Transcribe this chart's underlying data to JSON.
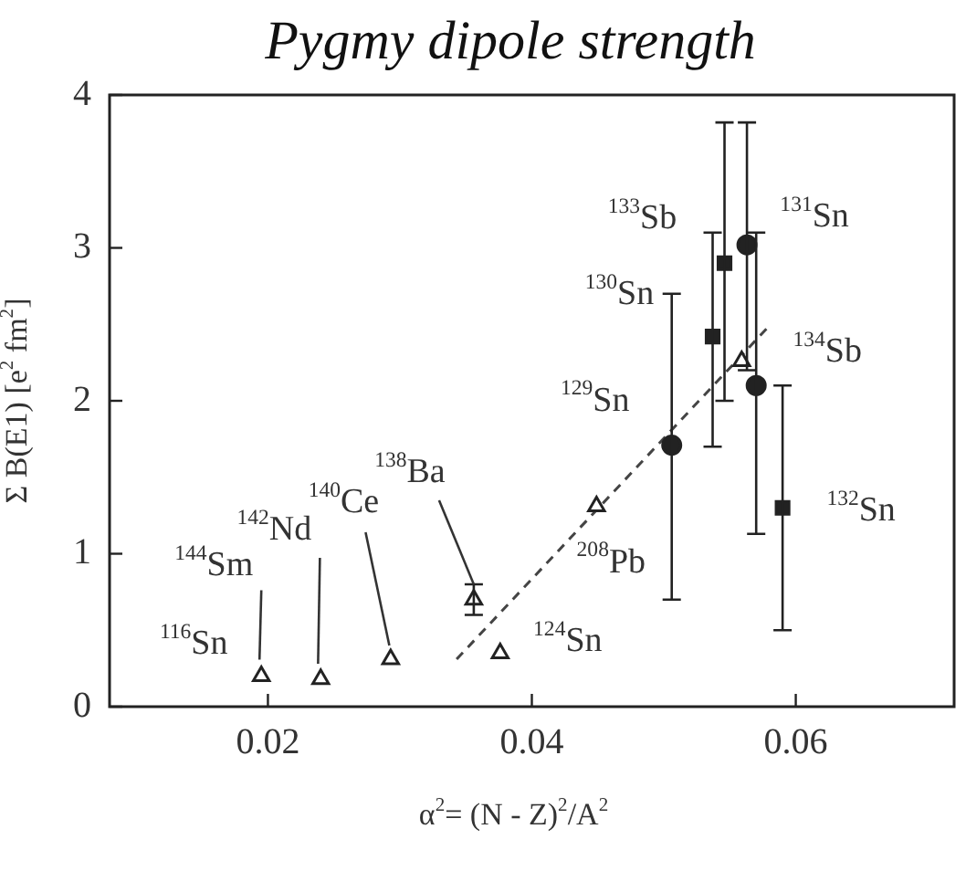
{
  "chart_data": {
    "type": "scatter",
    "title": "Pygmy dipole strength",
    "xlabel": "α$^{2}$= (N - Z)$^{2}$/A$^{2}$",
    "ylabel": "Σ B(E1) [e$^{2}$ fm$^{2}$]",
    "xlim": [
      0.008,
      0.072
    ],
    "ylim": [
      0,
      4
    ],
    "xticks": [
      0.02,
      0.04,
      0.06
    ],
    "yticks": [
      0,
      1,
      2,
      3,
      4
    ],
    "grid": false,
    "legend": false,
    "series": [
      {
        "type": "scatter",
        "marker": "triangle",
        "color": "#222222",
        "x": [
          0.0195,
          0.024,
          0.0293,
          0.0356,
          0.0376,
          0.0449,
          0.0559
        ],
        "values": [
          0.2,
          0.18,
          0.31,
          0.7,
          0.35,
          1.31,
          2.26
        ],
        "errors": [
          null,
          null,
          null,
          [
            0.6,
            0.8
          ],
          null,
          null,
          null
        ]
      },
      {
        "type": "scatter",
        "marker": "circle",
        "color": "#222222",
        "x": [
          0.0506,
          0.0563,
          0.057
        ],
        "values": [
          1.71,
          3.02,
          2.1
        ],
        "errors": [
          [
            0.7,
            2.7
          ],
          [
            2.2,
            3.82
          ],
          [
            1.13,
            3.1
          ]
        ]
      },
      {
        "type": "scatter",
        "marker": "square",
        "color": "#222222",
        "x": [
          0.0537,
          0.0546,
          0.059
        ],
        "values": [
          2.42,
          2.9,
          1.3
        ],
        "errors": [
          [
            1.7,
            3.1
          ],
          [
            2.0,
            3.82
          ],
          [
            0.5,
            2.1
          ]
        ]
      },
      {
        "type": "line",
        "marker": "none",
        "line_style": "dashed",
        "color": "#444444",
        "x": [
          0.0343,
          0.0581
        ],
        "values": [
          0.31,
          2.5
        ]
      }
    ],
    "annotations": [
      {
        "text": "$^{116}$Sn",
        "x": 0.0195,
        "y": 0.2
      },
      {
        "text": "$^{144}$Sm",
        "x": 0.0195,
        "y": 0.2
      },
      {
        "text": "$^{142}$Nd",
        "x": 0.0238,
        "y": 0.28
      },
      {
        "text": "$^{140}$Ce",
        "x": 0.0292,
        "y": 0.4
      },
      {
        "text": "$^{138}$Ba",
        "x": 0.0356,
        "y": 0.8
      },
      {
        "text": "$^{124}$Sn",
        "x": 0.0376,
        "y": 0.35
      },
      {
        "text": "$^{208}$Pb",
        "x": 0.0449,
        "y": 1.31
      },
      {
        "text": "$^{129}$Sn",
        "x": 0.0506,
        "y": 1.71
      },
      {
        "text": "$^{130}$Sn",
        "x": 0.0537,
        "y": 2.42
      },
      {
        "text": "$^{133}$Sb",
        "x": 0.0546,
        "y": 2.9
      },
      {
        "text": "$^{131}$Sn",
        "x": 0.0563,
        "y": 3.02
      },
      {
        "text": "$^{134}$Sb",
        "x": 0.057,
        "y": 2.1
      },
      {
        "text": "$^{132}$Sn",
        "x": 0.059,
        "y": 1.3
      }
    ]
  }
}
